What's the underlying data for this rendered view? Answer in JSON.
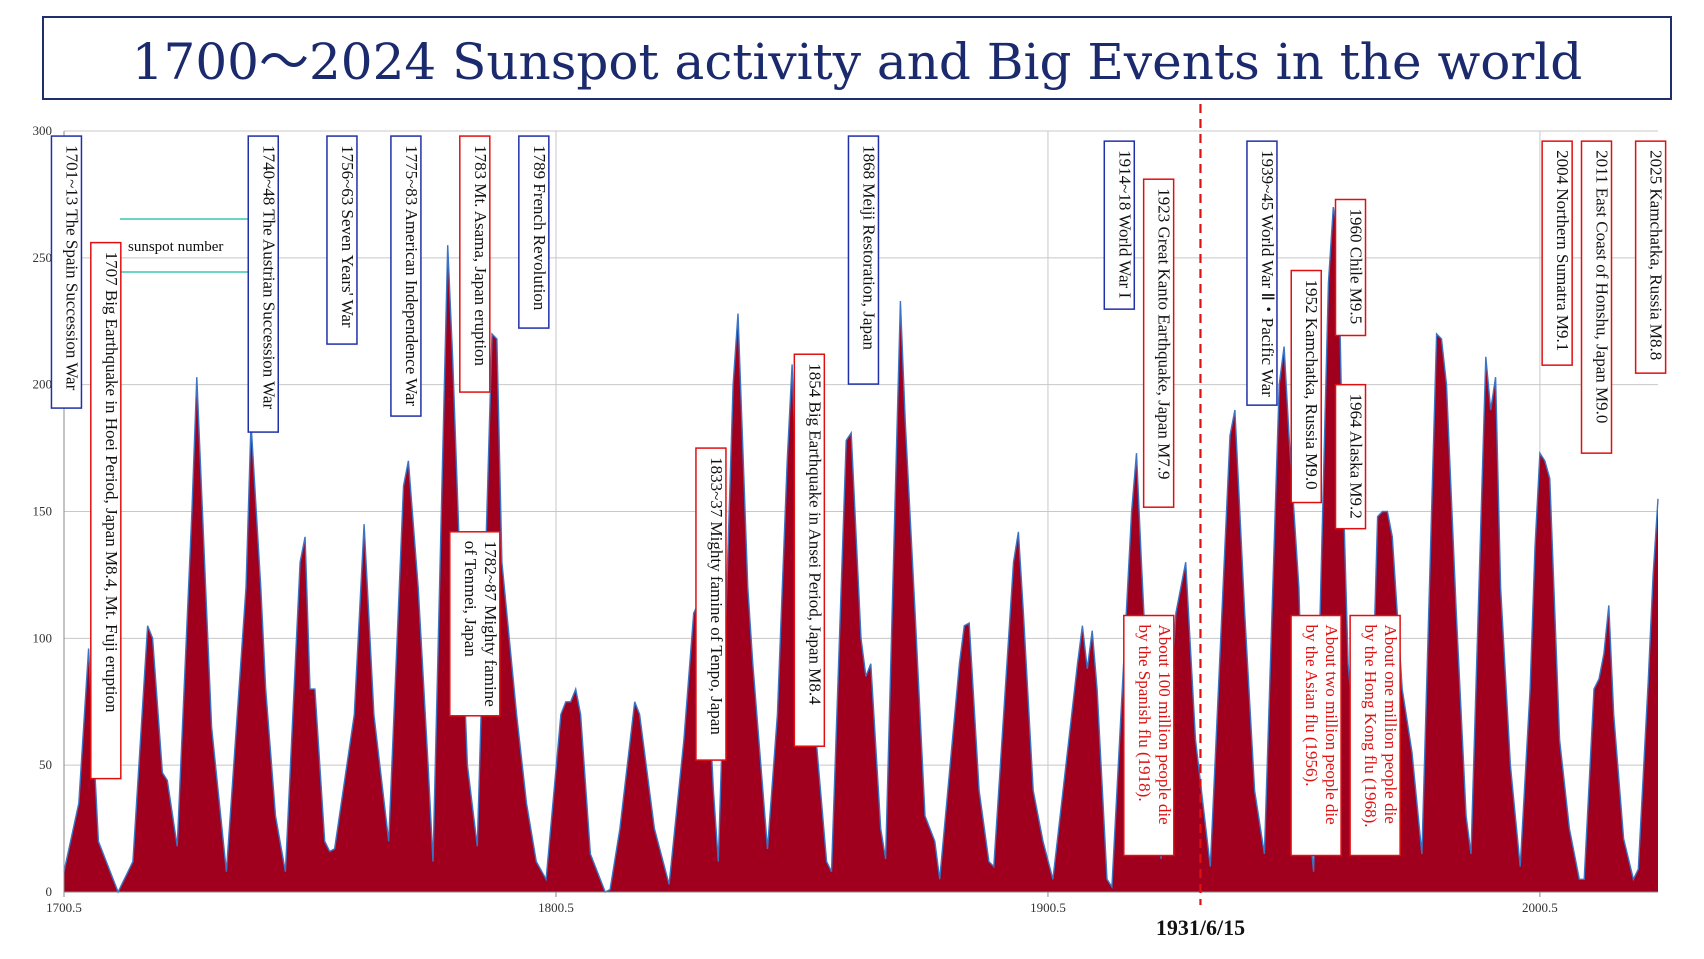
{
  "title": "1700～2024 Sunspot activity and Big Events in the world",
  "colors": {
    "area_fill": "#a0001e",
    "area_line": "#3b74c4",
    "grid": "#c8c8c8",
    "axis": "#888888",
    "legend_line": "#3cc8b4",
    "marker": "#e01010",
    "blue_box": "#2030a8",
    "red_box": "#e01010",
    "red_text": "#e01010"
  },
  "chart_data": {
    "type": "area",
    "legend": {
      "label": "sunspot number",
      "placement": "top-left"
    },
    "grid": true,
    "xlim": [
      1700.5,
      2024.5
    ],
    "ylim": [
      0,
      300
    ],
    "y_ticks": [
      0,
      50,
      100,
      150,
      200,
      250,
      300
    ],
    "x_ticks": [
      1700.5,
      1800.5,
      1900.5,
      2000.5
    ],
    "x_tick_labels": [
      "1700.5",
      "1800.5",
      "1900.5",
      "2000.5"
    ],
    "marker": {
      "year": 1931.5,
      "label": "1931/6/15"
    },
    "series": [
      {
        "name": "sunspot number",
        "points": [
          [
            1700.5,
            8
          ],
          [
            1703.5,
            35
          ],
          [
            1705.5,
            96
          ],
          [
            1707.5,
            20
          ],
          [
            1711.5,
            0
          ],
          [
            1714.5,
            12
          ],
          [
            1717.5,
            105
          ],
          [
            1718.5,
            100
          ],
          [
            1720.5,
            47
          ],
          [
            1721.5,
            44
          ],
          [
            1723.5,
            18
          ],
          [
            1726.5,
            150
          ],
          [
            1727.5,
            203
          ],
          [
            1729.5,
            110
          ],
          [
            1730.5,
            65
          ],
          [
            1733.5,
            8
          ],
          [
            1737.5,
            120
          ],
          [
            1738.5,
            185
          ],
          [
            1740.5,
            120
          ],
          [
            1741.5,
            80
          ],
          [
            1743.5,
            30
          ],
          [
            1745.5,
            8
          ],
          [
            1748.5,
            130
          ],
          [
            1749.5,
            140
          ],
          [
            1750.5,
            80
          ],
          [
            1751.5,
            80
          ],
          [
            1753.5,
            20
          ],
          [
            1754.5,
            16
          ],
          [
            1755.5,
            17
          ],
          [
            1759.5,
            70
          ],
          [
            1761.5,
            145
          ],
          [
            1763.5,
            70
          ],
          [
            1766.5,
            20
          ],
          [
            1769.5,
            160
          ],
          [
            1770.5,
            170
          ],
          [
            1772.5,
            120
          ],
          [
            1774.5,
            50
          ],
          [
            1775.5,
            12
          ],
          [
            1778.5,
            255
          ],
          [
            1779.5,
            210
          ],
          [
            1781.5,
            100
          ],
          [
            1782.5,
            50
          ],
          [
            1784.5,
            18
          ],
          [
            1787.5,
            220
          ],
          [
            1788.5,
            218
          ],
          [
            1789.5,
            130
          ],
          [
            1791.5,
            90
          ],
          [
            1792.5,
            70
          ],
          [
            1794.5,
            35
          ],
          [
            1796.5,
            12
          ],
          [
            1798.5,
            5
          ],
          [
            1801.5,
            70
          ],
          [
            1802.5,
            75
          ],
          [
            1803.5,
            75
          ],
          [
            1804.5,
            80
          ],
          [
            1805.5,
            70
          ],
          [
            1807.5,
            15
          ],
          [
            1810.5,
            0
          ],
          [
            1811.5,
            1
          ],
          [
            1813.5,
            25
          ],
          [
            1816.5,
            75
          ],
          [
            1817.5,
            70
          ],
          [
            1820.5,
            25
          ],
          [
            1823.5,
            3
          ],
          [
            1826.5,
            60
          ],
          [
            1828.5,
            110
          ],
          [
            1830.5,
            118
          ],
          [
            1832.5,
            40
          ],
          [
            1833.5,
            12
          ],
          [
            1836.5,
            200
          ],
          [
            1837.5,
            228
          ],
          [
            1839.5,
            120
          ],
          [
            1840.5,
            90
          ],
          [
            1843.5,
            17
          ],
          [
            1845.5,
            70
          ],
          [
            1847.5,
            170
          ],
          [
            1848.5,
            208
          ],
          [
            1850.5,
            100
          ],
          [
            1852.5,
            80
          ],
          [
            1854.5,
            35
          ],
          [
            1855.5,
            12
          ],
          [
            1856.5,
            8
          ],
          [
            1859.5,
            178
          ],
          [
            1860.5,
            181
          ],
          [
            1862.5,
            100
          ],
          [
            1863.5,
            85
          ],
          [
            1864.5,
            90
          ],
          [
            1866.5,
            25
          ],
          [
            1867.5,
            13
          ],
          [
            1870.5,
            233
          ],
          [
            1871.5,
            185
          ],
          [
            1873.5,
            110
          ],
          [
            1875.5,
            30
          ],
          [
            1877.5,
            20
          ],
          [
            1878.5,
            5
          ],
          [
            1882.5,
            90
          ],
          [
            1883.5,
            105
          ],
          [
            1884.5,
            106
          ],
          [
            1886.5,
            40
          ],
          [
            1888.5,
            12
          ],
          [
            1889.5,
            10
          ],
          [
            1893.5,
            130
          ],
          [
            1894.5,
            142
          ],
          [
            1895.5,
            110
          ],
          [
            1897.5,
            40
          ],
          [
            1899.5,
            20
          ],
          [
            1901.5,
            5
          ],
          [
            1906.5,
            90
          ],
          [
            1907.5,
            105
          ],
          [
            1908.5,
            88
          ],
          [
            1909.5,
            103
          ],
          [
            1910.5,
            80
          ],
          [
            1912.5,
            5
          ],
          [
            1913.5,
            2
          ],
          [
            1917.5,
            150
          ],
          [
            1918.5,
            173
          ],
          [
            1919.5,
            130
          ],
          [
            1921.5,
            50
          ],
          [
            1923.5,
            13
          ],
          [
            1926.5,
            110
          ],
          [
            1928.5,
            130
          ],
          [
            1930.5,
            60
          ],
          [
            1933.5,
            10
          ],
          [
            1937.5,
            180
          ],
          [
            1938.5,
            190
          ],
          [
            1940.5,
            110
          ],
          [
            1942.5,
            40
          ],
          [
            1944.5,
            15
          ],
          [
            1947.5,
            200
          ],
          [
            1948.5,
            215
          ],
          [
            1949.5,
            180
          ],
          [
            1951.5,
            120
          ],
          [
            1952.5,
            50
          ],
          [
            1954.5,
            8
          ],
          [
            1957.5,
            240
          ],
          [
            1958.5,
            270
          ],
          [
            1959.5,
            260
          ],
          [
            1960.5,
            160
          ],
          [
            1961.5,
            90
          ],
          [
            1963.5,
            45
          ],
          [
            1964.5,
            15
          ],
          [
            1966.5,
            80
          ],
          [
            1967.5,
            148
          ],
          [
            1968.5,
            150
          ],
          [
            1969.5,
            150
          ],
          [
            1970.5,
            140
          ],
          [
            1972.5,
            80
          ],
          [
            1974.5,
            55
          ],
          [
            1976.5,
            15
          ],
          [
            1979.5,
            220
          ],
          [
            1980.5,
            218
          ],
          [
            1981.5,
            200
          ],
          [
            1983.5,
            110
          ],
          [
            1985.5,
            30
          ],
          [
            1986.5,
            15
          ],
          [
            1989.5,
            211
          ],
          [
            1990.5,
            190
          ],
          [
            1991.5,
            203
          ],
          [
            1992.5,
            120
          ],
          [
            1994.5,
            50
          ],
          [
            1996.5,
            10
          ],
          [
            1998.5,
            80
          ],
          [
            1999.5,
            136
          ],
          [
            2000.5,
            173
          ],
          [
            2001.5,
            170
          ],
          [
            2002.5,
            163
          ],
          [
            2004.5,
            60
          ],
          [
            2006.5,
            25
          ],
          [
            2008.5,
            5
          ],
          [
            2009.5,
            5
          ],
          [
            2011.5,
            80
          ],
          [
            2012.5,
            84
          ],
          [
            2013.5,
            94
          ],
          [
            2014.5,
            113
          ],
          [
            2015.5,
            70
          ],
          [
            2017.5,
            21
          ],
          [
            2019.5,
            5
          ],
          [
            2020.5,
            9
          ],
          [
            2022.5,
            83
          ],
          [
            2023.5,
            125
          ],
          [
            2024.5,
            155
          ]
        ]
      }
    ],
    "annotations": [
      {
        "text": "1701~13 The Spain Succession War",
        "x": 1701,
        "y_top": 298,
        "color": "blue",
        "lines": [
          "1701~13 The Spain Succession War"
        ]
      },
      {
        "text": "1707 Big Earthquake in Hoei Period, Japan M8.4, Mt. Fuji eruption",
        "x": 1709,
        "y_top": 256,
        "color": "red",
        "lines": [
          "1707 Big Earthquake in Hoei Period, Japan M8.4, Mt. Fuji eruption"
        ]
      },
      {
        "text": "1740~48 The Austrian Succession War",
        "x": 1741,
        "y_top": 298,
        "color": "blue",
        "lines": [
          "1740~48 The Austrian Succession War"
        ]
      },
      {
        "text": "1756~63 Seven Years' War",
        "x": 1757,
        "y_top": 298,
        "color": "blue",
        "lines": [
          "1756~63 Seven Years' War"
        ]
      },
      {
        "text": "1775~83 American Independence War",
        "x": 1770,
        "y_top": 298,
        "color": "blue",
        "lines": [
          "1775~83 American Independence War"
        ]
      },
      {
        "text": "1783 Mt. Asama, Japan eruption",
        "x": 1784,
        "y_top": 298,
        "color": "red",
        "lines": [
          "1783 Mt. Asama, Japan eruption"
        ]
      },
      {
        "text": "1782~87 Mighty famine of Tenmei, Japan",
        "x": 1784,
        "y_top": 142,
        "color": "red",
        "lines": [
          "1782~87 Mighty famine",
          "of Tenmei, Japan"
        ]
      },
      {
        "text": "1789 French Revolution",
        "x": 1796,
        "y_top": 298,
        "color": "blue",
        "lines": [
          "1789 French Revolution"
        ]
      },
      {
        "text": "1833~37 Mighty famine of Tenpo, Japan",
        "x": 1832,
        "y_top": 175,
        "color": "red",
        "lines": [
          "1833~37 Mighty famine of Tenpo, Japan"
        ]
      },
      {
        "text": "1854 Big Earthquake in Ansei Period, Japan M8.4",
        "x": 1852,
        "y_top": 212,
        "color": "red",
        "lines": [
          "1854 Big Earthquake in Ansei Period, Japan M8.4"
        ]
      },
      {
        "text": "1868 Meiji Restoration, Japan",
        "x": 1863,
        "y_top": 298,
        "color": "blue",
        "lines": [
          "1868 Meiji Restoration, Japan"
        ]
      },
      {
        "text": "1914~18 World War I",
        "x": 1915,
        "y_top": 296,
        "color": "blue",
        "lines": [
          "1914~18 World War I"
        ]
      },
      {
        "text": "1923 Great Kanto Earthquake, Japan M7.9",
        "x": 1923,
        "y_top": 281,
        "color": "red",
        "lines": [
          "1923 Great Kanto Earthquake, Japan M7.9"
        ]
      },
      {
        "text": "About 100 million people die by the Spanish flu (1918).",
        "x": 1921,
        "y_top": 109,
        "color": "red",
        "lines": [
          "About 100 million people die",
          "by the Spanish flu (1918)."
        ]
      },
      {
        "text": "1939~45 World War Ⅱ・Pacific War",
        "x": 1944,
        "y_top": 296,
        "color": "blue",
        "lines": [
          "1939~45 World War Ⅱ・Pacific War"
        ]
      },
      {
        "text": "1952 Kamchatka, Russia M9.0",
        "x": 1953,
        "y_top": 245,
        "color": "red",
        "lines": [
          "1952 Kamchatka, Russia M9.0"
        ]
      },
      {
        "text": "1960 Chile M9.5",
        "x": 1962,
        "y_top": 273,
        "color": "red",
        "lines": [
          "1960 Chile M9.5"
        ]
      },
      {
        "text": "1964 Alaska M9.2",
        "x": 1962,
        "y_top": 200,
        "color": "red",
        "lines": [
          "1964 Alaska M9.2"
        ]
      },
      {
        "text": "About two million people die by the Asian flu (1956).",
        "x": 1955,
        "y_top": 109,
        "color": "red",
        "lines": [
          "About two million people die",
          "by the Asian flu (1956)."
        ]
      },
      {
        "text": "About one million people die by the Hong Kong flu (1968).",
        "x": 1967,
        "y_top": 109,
        "color": "red",
        "lines": [
          "About one million people die",
          "by the Hong Kong flu (1968)."
        ]
      },
      {
        "text": "2004 Northern Sumatra M9.1",
        "x": 2004,
        "y_top": 296,
        "color": "red",
        "lines": [
          "2004 Northern Sumatra M9.1"
        ]
      },
      {
        "text": "2011 East Coast of Honshu, Japan M9.0",
        "x": 2012,
        "y_top": 296,
        "color": "red",
        "lines": [
          "2011 East Coast of Honshu, Japan M9.0"
        ]
      },
      {
        "text": "2025 Kamchatka, Russia M8.8",
        "x": 2023,
        "y_top": 296,
        "color": "red",
        "lines": [
          "2025 Kamchatka, Russia M8.8"
        ]
      }
    ]
  }
}
